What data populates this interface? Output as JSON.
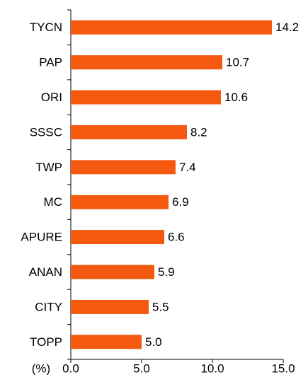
{
  "chart_data": {
    "type": "barh",
    "categories": [
      "TYCN",
      "PAP",
      "ORI",
      "SSSC",
      "TWP",
      "MC",
      "APURE",
      "ANAN",
      "CITY",
      "TOPP"
    ],
    "values": [
      14.2,
      10.7,
      10.6,
      8.2,
      7.4,
      6.9,
      6.6,
      5.9,
      5.5,
      5.0
    ],
    "value_labels": [
      "14.2",
      "10.7",
      "10.6",
      "8.2",
      "7.4",
      "6.9",
      "6.6",
      "5.9",
      "5.5",
      "5.0"
    ],
    "color": "#f4590f",
    "xlabel": "(%)",
    "xlim": [
      0,
      15
    ],
    "xticks": [
      {
        "value": 0,
        "label": "0.0"
      },
      {
        "value": 5,
        "label": "5.0"
      },
      {
        "value": 10,
        "label": "10.0"
      },
      {
        "value": 15,
        "label": "15.0"
      }
    ]
  }
}
